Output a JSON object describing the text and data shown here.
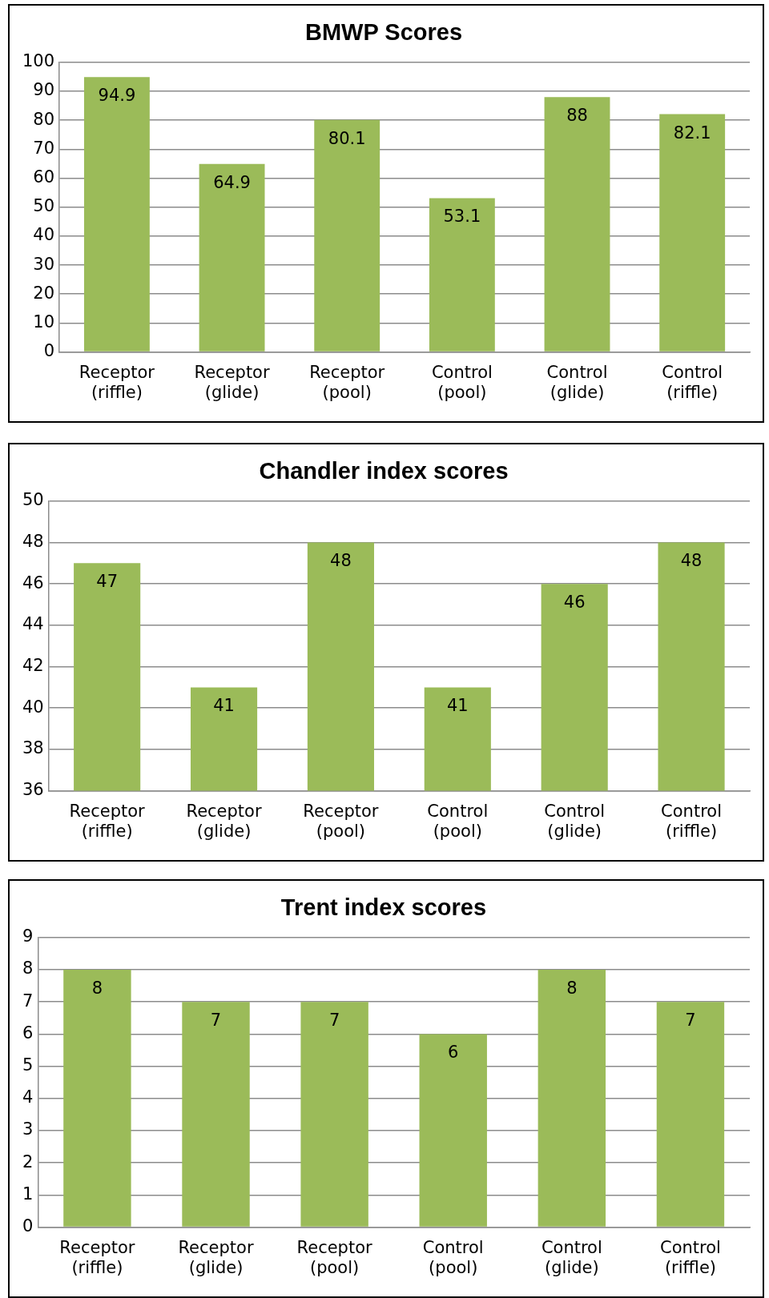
{
  "chart_data": [
    {
      "type": "bar",
      "title": "BMWP Scores",
      "categories": [
        "Receptor (riffle)",
        "Receptor (glide)",
        "Receptor (pool)",
        "Control (pool)",
        "Control (glide)",
        "Control (riffle)"
      ],
      "values": [
        94.9,
        64.9,
        80.1,
        53.1,
        88,
        82.1
      ],
      "color": "#9bbb59",
      "ylim": [
        0,
        100
      ],
      "yticks": [
        0,
        10,
        20,
        30,
        40,
        50,
        60,
        70,
        80,
        90,
        100
      ],
      "grid": "y",
      "data_labels": true
    },
    {
      "type": "bar",
      "title": "Chandler index scores",
      "categories": [
        "Receptor (riffle)",
        "Receptor (glide)",
        "Receptor (pool)",
        "Control (pool)",
        "Control (glide)",
        "Control (riffle)"
      ],
      "values": [
        47,
        41,
        48,
        41,
        46,
        48
      ],
      "color": "#9bbb59",
      "ylim": [
        36,
        50
      ],
      "yticks": [
        36,
        38,
        40,
        42,
        44,
        46,
        48,
        50
      ],
      "grid": "y",
      "data_labels": true
    },
    {
      "type": "bar",
      "title": "Trent index scores",
      "categories": [
        "Receptor (riffle)",
        "Receptor (glide)",
        "Receptor (pool)",
        "Control (pool)",
        "Control (glide)",
        "Control (riffle)"
      ],
      "values": [
        8,
        7,
        7,
        6,
        8,
        7
      ],
      "color": "#9bbb59",
      "ylim": [
        0,
        9
      ],
      "yticks": [
        0,
        1,
        2,
        3,
        4,
        5,
        6,
        7,
        8,
        9
      ],
      "grid": "y",
      "data_labels": true
    }
  ]
}
